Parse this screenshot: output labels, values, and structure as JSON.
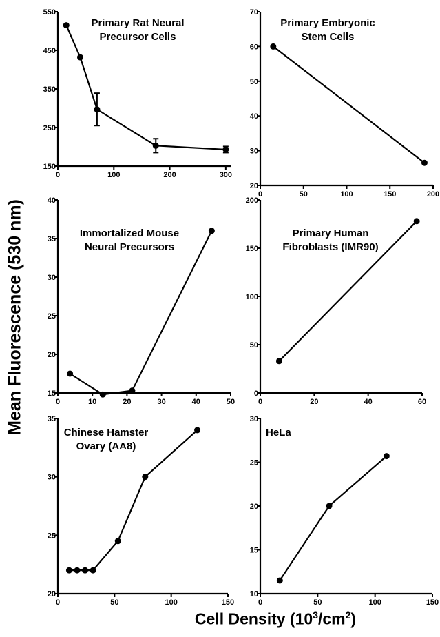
{
  "figure": {
    "ylabel": "Mean Fluorescence (530 nm)",
    "xlabel_prefix": "Cell Density (10",
    "xlabel_sup1": "3",
    "xlabel_mid": "/cm",
    "xlabel_sup2": "2",
    "xlabel_suffix": ")"
  },
  "chart_data": [
    {
      "type": "line",
      "title_lines": [
        "Primary Rat Neural",
        "Precursor Cells"
      ],
      "x": [
        15,
        40,
        70,
        175,
        300
      ],
      "y": [
        515,
        432,
        297,
        203,
        193
      ],
      "yerr": [
        0,
        0,
        42,
        18,
        8
      ],
      "xlim": [
        0,
        310
      ],
      "ylim": [
        150,
        550
      ],
      "xticks": [
        0,
        100,
        200,
        300
      ],
      "yticks": [
        150,
        250,
        350,
        450,
        550
      ]
    },
    {
      "type": "line",
      "title_lines": [
        "Primary Embryonic",
        "Stem Cells"
      ],
      "x": [
        15,
        190
      ],
      "y": [
        60,
        26.5
      ],
      "xlim": [
        0,
        200
      ],
      "ylim": [
        20,
        70
      ],
      "xticks": [
        0,
        50,
        100,
        150,
        200
      ],
      "yticks": [
        20,
        30,
        40,
        50,
        60,
        70
      ]
    },
    {
      "type": "line",
      "title_lines": [
        "Immortalized Mouse",
        "Neural Precursors"
      ],
      "x": [
        3.5,
        13,
        21.5,
        44.5
      ],
      "y": [
        17.5,
        14.8,
        15.3,
        36
      ],
      "xlim": [
        0,
        50
      ],
      "ylim": [
        15,
        40
      ],
      "xticks": [
        0,
        10,
        20,
        30,
        40,
        50
      ],
      "yticks": [
        15,
        20,
        25,
        30,
        35,
        40
      ]
    },
    {
      "type": "line",
      "title_lines": [
        "Primary Human",
        "Fibroblasts (IMR90)"
      ],
      "x": [
        7,
        58
      ],
      "y": [
        33,
        178
      ],
      "xlim": [
        0,
        60
      ],
      "ylim": [
        0,
        200
      ],
      "xticks": [
        0,
        20,
        40,
        60
      ],
      "yticks": [
        0,
        50,
        100,
        150,
        200
      ]
    },
    {
      "type": "line",
      "title_lines": [
        "Chinese Hamster",
        "Ovary (AA8)"
      ],
      "x": [
        10,
        17,
        24,
        31,
        53,
        77,
        123
      ],
      "y": [
        22,
        22,
        22,
        22,
        24.5,
        30,
        34
      ],
      "xlim": [
        0,
        150
      ],
      "ylim": [
        20,
        35
      ],
      "xticks": [
        0,
        50,
        100,
        150
      ],
      "yticks": [
        20,
        25,
        30,
        35
      ]
    },
    {
      "type": "line",
      "title_lines": [
        "HeLa"
      ],
      "x": [
        17,
        60,
        110
      ],
      "y": [
        11.5,
        20,
        25.7
      ],
      "xlim": [
        0,
        150
      ],
      "ylim": [
        10,
        30
      ],
      "xticks": [
        0,
        50,
        100,
        150
      ],
      "yticks": [
        10,
        15,
        20,
        25,
        30
      ]
    }
  ]
}
